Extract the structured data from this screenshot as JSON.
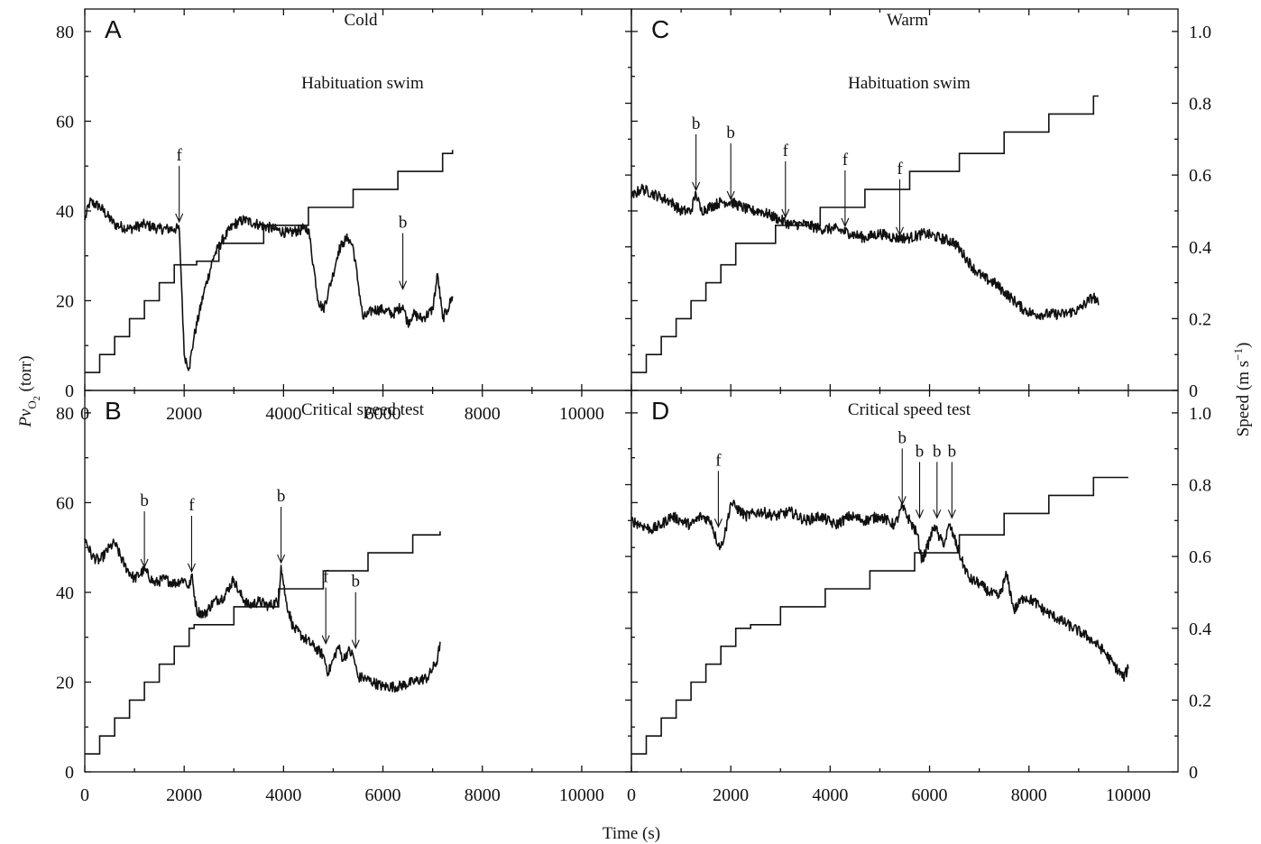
{
  "figure": {
    "x_axis_label": "Time (s)",
    "left_axis_label": "Pv",
    "left_axis_label_sub": "O",
    "left_axis_label_sub2": "2",
    "left_axis_label_unit": " (torr)",
    "right_axis_label": "Speed (m s",
    "right_axis_label_exp": "−1",
    "right_axis_label_end": ")"
  },
  "chart_data": [
    {
      "type": "line",
      "panel": "A",
      "condition": "Cold",
      "subtitle": "Habituation swim",
      "xlim": [
        0,
        11000
      ],
      "ylim_left": [
        0,
        85
      ],
      "ylim_right": [
        0,
        1.0625
      ],
      "x_ticks": [
        "0",
        "2000",
        "4000",
        "6000",
        "8000",
        "10000"
      ],
      "left_ticks": [
        "0",
        "20",
        "40",
        "60",
        "80"
      ],
      "right_ticks": [],
      "series": [
        {
          "axis": "left",
          "x": [
            0,
            100,
            300,
            600,
            900,
            1200,
            1500,
            1800,
            1900,
            1960,
            2000,
            2100,
            2200,
            2400,
            2600,
            2800,
            3000,
            3200,
            3500,
            3800,
            4100,
            4400,
            4500,
            4600,
            4700,
            4800,
            4900,
            5000,
            5100,
            5200,
            5300,
            5400,
            5500,
            5600,
            5700,
            5800,
            6000,
            6200,
            6400,
            6500,
            6600,
            6800,
            7000,
            7100,
            7200,
            7300,
            7400
          ],
          "y": [
            38,
            42,
            41,
            37,
            36,
            37,
            36,
            36,
            36,
            20,
            8,
            5,
            12,
            22,
            30,
            34,
            37,
            38,
            37,
            36,
            35,
            36,
            36,
            28,
            20,
            18,
            22,
            26,
            31,
            33,
            34,
            32,
            24,
            16,
            17,
            18,
            18,
            17,
            19,
            15,
            17,
            16,
            18,
            26,
            16,
            18,
            21
          ]
        },
        {
          "axis": "right",
          "x_steps": [
            0,
            300,
            600,
            900,
            1200,
            1500,
            1800,
            2250,
            2700,
            3600,
            4500,
            5400,
            6300,
            7200,
            7400
          ],
          "values": [
            0.05,
            0.1,
            0.15,
            0.2,
            0.25,
            0.3,
            0.35,
            0.36,
            0.41,
            0.46,
            0.51,
            0.56,
            0.61,
            0.66,
            0.67
          ]
        }
      ],
      "annotations": [
        {
          "label": "f",
          "x": 1900,
          "y": 37
        },
        {
          "label": "b",
          "x": 6400,
          "y": 22
        }
      ]
    },
    {
      "type": "line",
      "panel": "B",
      "condition": "",
      "subtitle": "Critical speed test",
      "xlim": [
        0,
        11000
      ],
      "ylim_left": [
        0,
        85
      ],
      "ylim_right": [
        0,
        1.0625
      ],
      "x_ticks": [
        "0",
        "2000",
        "4000",
        "6000",
        "8000",
        "10000"
      ],
      "left_ticks": [
        "0",
        "20",
        "40",
        "60",
        "80"
      ],
      "right_ticks": [],
      "series": [
        {
          "axis": "left",
          "x": [
            0,
            150,
            300,
            500,
            600,
            800,
            1000,
            1200,
            1400,
            1600,
            1800,
            2000,
            2100,
            2150,
            2250,
            2400,
            2600,
            2800,
            3000,
            3100,
            3300,
            3500,
            3700,
            3900,
            3950,
            4050,
            4200,
            4400,
            4600,
            4800,
            4900,
            5000,
            5100,
            5200,
            5300,
            5400,
            5500,
            5600,
            5800,
            6000,
            6300,
            6600,
            6900,
            7100,
            7150
          ],
          "y": [
            52,
            48,
            47,
            50,
            51,
            46,
            43,
            45,
            42,
            43,
            42,
            43,
            41,
            44,
            36,
            35,
            38,
            39,
            43,
            40,
            37,
            38,
            37,
            38,
            46,
            38,
            32,
            30,
            28,
            26,
            22,
            25,
            28,
            25,
            27,
            26,
            21,
            21,
            20,
            19,
            19,
            20,
            21,
            25,
            29
          ]
        },
        {
          "axis": "right",
          "x_steps": [
            0,
            300,
            600,
            900,
            1200,
            1500,
            1800,
            2100,
            2200,
            3000,
            3900,
            4800,
            5700,
            6600,
            7150
          ],
          "values": [
            0.05,
            0.1,
            0.15,
            0.2,
            0.25,
            0.3,
            0.35,
            0.4,
            0.41,
            0.46,
            0.51,
            0.56,
            0.61,
            0.66,
            0.67
          ]
        }
      ],
      "annotations": [
        {
          "label": "b",
          "x": 1200,
          "y": 45
        },
        {
          "label": "f",
          "x": 2150,
          "y": 44
        },
        {
          "label": "b",
          "x": 3950,
          "y": 46
        },
        {
          "label": "f",
          "x": 4850,
          "y": 28
        },
        {
          "label": "b",
          "x": 5450,
          "y": 27
        }
      ]
    },
    {
      "type": "line",
      "panel": "C",
      "condition": "Warm",
      "subtitle": "Habituation swim",
      "xlim": [
        0,
        11000
      ],
      "ylim_left": [
        0,
        85
      ],
      "ylim_right": [
        0,
        1.0625
      ],
      "x_ticks": [],
      "left_ticks": [],
      "right_ticks": [
        "0",
        "0.2",
        "0.4",
        "0.6",
        "0.8",
        "1.0"
      ],
      "series": [
        {
          "axis": "left",
          "x": [
            0,
            200,
            400,
            600,
            800,
            1000,
            1200,
            1300,
            1400,
            1600,
            1800,
            2000,
            2200,
            2400,
            2600,
            2800,
            3000,
            3200,
            3500,
            3800,
            4100,
            4400,
            4700,
            5000,
            5300,
            5600,
            5900,
            6200,
            6500,
            6700,
            6900,
            7100,
            7300,
            7500,
            7700,
            7900,
            8100,
            8400,
            8700,
            9000,
            9200,
            9300,
            9400
          ],
          "y": [
            43,
            45,
            44,
            43,
            42,
            40,
            40,
            44,
            40,
            41,
            42,
            42,
            41,
            40,
            40,
            39,
            38,
            37,
            37,
            36,
            36,
            35,
            34,
            35,
            34,
            34,
            35,
            34,
            33,
            30,
            27,
            25,
            24,
            22,
            20,
            18,
            17,
            17,
            17,
            18,
            20,
            21,
            19
          ]
        },
        {
          "axis": "right",
          "x_steps": [
            0,
            300,
            600,
            900,
            1200,
            1500,
            1800,
            2100,
            2500,
            2900,
            3800,
            4700,
            5600,
            6600,
            7500,
            8400,
            9300,
            9400
          ],
          "values": [
            0.05,
            0.1,
            0.15,
            0.2,
            0.25,
            0.3,
            0.35,
            0.41,
            0.41,
            0.46,
            0.51,
            0.56,
            0.61,
            0.66,
            0.72,
            0.77,
            0.82,
            0.82
          ]
        }
      ],
      "annotations": [
        {
          "label": "b",
          "x": 1300,
          "y": 44
        },
        {
          "label": "b",
          "x": 2000,
          "y": 42
        },
        {
          "label": "f",
          "x": 3100,
          "y": 38
        },
        {
          "label": "f",
          "x": 4300,
          "y": 36
        },
        {
          "label": "f",
          "x": 5400,
          "y": 34
        }
      ]
    },
    {
      "type": "line",
      "panel": "D",
      "condition": "",
      "subtitle": "Critical speed test",
      "xlim": [
        0,
        11000
      ],
      "ylim_left": [
        0,
        85
      ],
      "ylim_right": [
        0,
        1.0625
      ],
      "x_ticks": [
        "0",
        "2000",
        "4000",
        "6000",
        "8000",
        "10000"
      ],
      "left_ticks": [],
      "right_ticks": [
        "0",
        "0.2",
        "0.4",
        "0.6",
        "0.8",
        "1.0"
      ],
      "series": [
        {
          "axis": "left",
          "x": [
            0,
            200,
            400,
            600,
            800,
            1000,
            1200,
            1400,
            1600,
            1700,
            1800,
            1900,
            2000,
            2100,
            2300,
            2600,
            2900,
            3200,
            3500,
            3800,
            4100,
            4400,
            4700,
            5000,
            5300,
            5450,
            5600,
            5750,
            5850,
            5950,
            6100,
            6200,
            6300,
            6400,
            6500,
            6650,
            6800,
            7000,
            7200,
            7400,
            7550,
            7700,
            7900,
            8100,
            8300,
            8600,
            8900,
            9200,
            9500,
            9700,
            9900,
            10000
          ],
          "y": [
            56,
            55,
            54,
            55,
            57,
            56,
            55,
            57,
            56,
            52,
            50,
            54,
            60,
            59,
            57,
            58,
            57,
            58,
            56,
            57,
            55,
            57,
            56,
            57,
            55,
            59,
            56,
            53,
            47,
            50,
            55,
            52,
            51,
            55,
            52,
            47,
            43,
            42,
            40,
            39,
            44,
            36,
            39,
            38,
            36,
            34,
            32,
            30,
            27,
            24,
            21,
            23
          ]
        },
        {
          "axis": "right",
          "x_steps": [
            0,
            300,
            600,
            900,
            1200,
            1500,
            1800,
            2100,
            2400,
            3000,
            3900,
            4800,
            5700,
            6600,
            7500,
            8400,
            9300,
            10000
          ],
          "values": [
            0.05,
            0.1,
            0.15,
            0.2,
            0.25,
            0.3,
            0.35,
            0.4,
            0.41,
            0.46,
            0.51,
            0.56,
            0.61,
            0.66,
            0.72,
            0.77,
            0.82,
            0.82
          ]
        }
      ],
      "annotations": [
        {
          "label": "f",
          "x": 1750,
          "y": 54
        },
        {
          "label": "b",
          "x": 5450,
          "y": 59
        },
        {
          "label": "b",
          "x": 5800,
          "y": 56
        },
        {
          "label": "b",
          "x": 6150,
          "y": 56
        },
        {
          "label": "b",
          "x": 6450,
          "y": 56
        }
      ]
    }
  ]
}
